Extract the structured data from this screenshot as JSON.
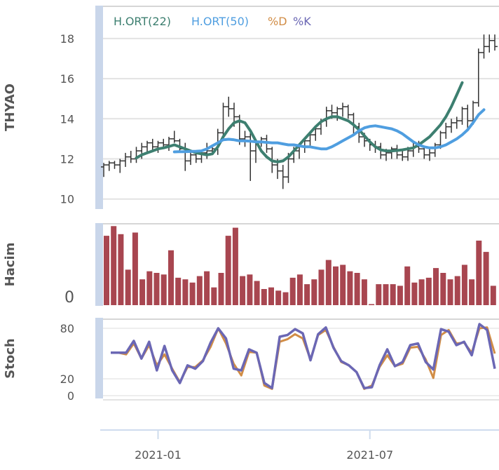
{
  "chart_data": [
    {
      "type": "ohlc",
      "ylabel": "THYAO",
      "ylim": [
        9.5,
        19.5
      ],
      "yticks": [
        10,
        12,
        14,
        16,
        18
      ],
      "legend": [
        {
          "name": "H.ORT(22)",
          "color": "#3d7f70"
        },
        {
          "name": "H.ORT(50)",
          "color": "#4f9ee0"
        },
        {
          "name": "%D",
          "color": "#d18d46"
        },
        {
          "name": "%K",
          "color": "#6b67b4"
        }
      ],
      "ohlc": [
        [
          11.6,
          11.8,
          11.1,
          11.7
        ],
        [
          11.7,
          11.9,
          11.4,
          11.8
        ],
        [
          11.8,
          11.9,
          11.5,
          11.7
        ],
        [
          11.7,
          12.0,
          11.3,
          11.9
        ],
        [
          11.9,
          12.3,
          11.6,
          12.1
        ],
        [
          12.1,
          12.4,
          11.8,
          12.0
        ],
        [
          12.0,
          12.6,
          11.8,
          12.4
        ],
        [
          12.4,
          12.8,
          12.0,
          12.6
        ],
        [
          12.6,
          12.9,
          12.3,
          12.8
        ],
        [
          12.8,
          13.0,
          12.4,
          12.6
        ],
        [
          12.6,
          12.9,
          12.3,
          12.8
        ],
        [
          12.8,
          13.0,
          12.5,
          12.7
        ],
        [
          12.7,
          13.1,
          12.4,
          13.0
        ],
        [
          13.0,
          13.4,
          12.8,
          12.9
        ],
        [
          12.9,
          13.0,
          12.3,
          12.5
        ],
        [
          12.5,
          12.8,
          11.4,
          11.9
        ],
        [
          11.9,
          12.4,
          11.7,
          12.2
        ],
        [
          12.2,
          12.4,
          11.8,
          12.0
        ],
        [
          12.0,
          12.4,
          11.8,
          12.3
        ],
        [
          12.3,
          12.8,
          12.0,
          12.4
        ],
        [
          12.4,
          12.6,
          12.2,
          12.5
        ],
        [
          12.5,
          13.5,
          12.2,
          13.3
        ],
        [
          13.3,
          14.8,
          13.0,
          14.6
        ],
        [
          14.6,
          15.1,
          14.1,
          14.5
        ],
        [
          14.5,
          14.8,
          13.6,
          14.1
        ],
        [
          14.1,
          14.2,
          12.7,
          13.0
        ],
        [
          13.0,
          13.4,
          12.6,
          13.1
        ],
        [
          13.1,
          13.3,
          10.9,
          12.4
        ],
        [
          12.4,
          12.9,
          11.8,
          12.8
        ],
        [
          12.8,
          13.1,
          12.6,
          13.0
        ],
        [
          13.0,
          13.2,
          12.3,
          12.5
        ],
        [
          12.5,
          12.6,
          11.3,
          11.7
        ],
        [
          11.7,
          12.0,
          11.0,
          11.4
        ],
        [
          11.4,
          11.7,
          10.5,
          11.1
        ],
        [
          11.1,
          12.3,
          10.8,
          12.0
        ],
        [
          12.0,
          12.6,
          11.8,
          12.4
        ],
        [
          12.4,
          12.7,
          12.0,
          12.6
        ],
        [
          12.6,
          13.0,
          12.3,
          12.9
        ],
        [
          12.9,
          13.3,
          12.6,
          13.2
        ],
        [
          13.2,
          13.6,
          12.9,
          13.5
        ],
        [
          13.5,
          14.0,
          13.2,
          13.9
        ],
        [
          13.9,
          14.6,
          13.6,
          14.4
        ],
        [
          14.4,
          14.7,
          14.0,
          14.3
        ],
        [
          14.3,
          14.6,
          13.9,
          14.5
        ],
        [
          14.5,
          14.8,
          14.1,
          14.6
        ],
        [
          14.6,
          14.7,
          14.0,
          14.2
        ],
        [
          14.2,
          14.3,
          13.2,
          13.6
        ],
        [
          13.6,
          13.8,
          12.8,
          13.1
        ],
        [
          13.1,
          13.3,
          12.6,
          12.9
        ],
        [
          12.9,
          13.0,
          12.4,
          12.7
        ],
        [
          12.7,
          12.9,
          12.3,
          12.6
        ],
        [
          12.6,
          12.8,
          12.0,
          12.2
        ],
        [
          12.2,
          12.5,
          11.9,
          12.3
        ],
        [
          12.3,
          12.6,
          12.0,
          12.5
        ],
        [
          12.5,
          12.7,
          12.0,
          12.2
        ],
        [
          12.2,
          12.4,
          11.9,
          12.1
        ],
        [
          12.1,
          12.6,
          11.9,
          12.4
        ],
        [
          12.4,
          12.8,
          12.1,
          12.6
        ],
        [
          12.6,
          12.9,
          12.3,
          12.5
        ],
        [
          12.5,
          12.6,
          12.0,
          12.2
        ],
        [
          12.2,
          12.5,
          11.9,
          12.3
        ],
        [
          12.3,
          12.8,
          12.1,
          12.7
        ],
        [
          12.7,
          13.4,
          12.5,
          13.3
        ],
        [
          13.3,
          13.8,
          13.0,
          13.6
        ],
        [
          13.6,
          14.0,
          13.3,
          13.8
        ],
        [
          13.8,
          14.1,
          13.5,
          13.9
        ],
        [
          13.9,
          14.6,
          13.7,
          14.5
        ],
        [
          14.5,
          14.7,
          13.5,
          13.9
        ],
        [
          13.9,
          14.9,
          13.7,
          14.8
        ],
        [
          14.8,
          17.5,
          14.6,
          17.3
        ],
        [
          17.3,
          18.2,
          17.0,
          17.6
        ],
        [
          17.6,
          18.2,
          17.3,
          17.9
        ],
        [
          17.9,
          18.2,
          17.4,
          17.6
        ]
      ],
      "series": [
        {
          "name": "H.ORT(22)",
          "x_start": 6,
          "values": [
            12.05,
            12.2,
            12.3,
            12.4,
            12.5,
            12.55,
            12.62,
            12.7,
            12.6,
            12.5,
            12.4,
            12.3,
            12.25,
            12.2,
            12.25,
            12.6,
            13.1,
            13.5,
            13.8,
            13.9,
            13.8,
            13.4,
            12.9,
            12.4,
            12.1,
            11.9,
            11.85,
            11.9,
            12.1,
            12.4,
            12.7,
            13.0,
            13.3,
            13.6,
            13.85,
            14.0,
            14.1,
            14.1,
            14.0,
            13.9,
            13.7,
            13.45,
            13.15,
            12.85,
            12.6,
            12.45,
            12.4,
            12.4,
            12.42,
            12.45,
            12.5,
            12.55,
            12.7,
            12.9,
            13.1,
            13.4,
            13.7,
            14.1,
            14.6,
            15.2,
            15.8
          ]
        },
        {
          "name": "H.ORT(50)",
          "x_start": 13,
          "values": [
            12.35,
            12.36,
            12.36,
            12.37,
            12.38,
            12.4,
            12.5,
            12.65,
            12.8,
            12.95,
            12.98,
            12.95,
            12.9,
            12.9,
            12.88,
            12.85,
            12.85,
            12.82,
            12.8,
            12.8,
            12.75,
            12.7,
            12.7,
            12.65,
            12.6,
            12.6,
            12.55,
            12.5,
            12.5,
            12.6,
            12.75,
            12.9,
            13.05,
            13.2,
            13.4,
            13.55,
            13.62,
            13.65,
            13.6,
            13.55,
            13.5,
            13.4,
            13.25,
            13.05,
            12.85,
            12.7,
            12.6,
            12.55,
            12.55,
            12.6,
            12.7,
            12.85,
            13.0,
            13.2,
            13.45,
            13.8,
            14.2,
            14.45
          ]
        }
      ]
    },
    {
      "type": "bar",
      "ylabel": "Hacim",
      "ytick_labels": [
        "0"
      ],
      "ylim": [
        0,
        100
      ],
      "values": [
        86,
        98,
        88,
        44,
        90,
        32,
        42,
        40,
        38,
        68,
        34,
        32,
        28,
        36,
        42,
        22,
        40,
        86,
        96,
        36,
        38,
        30,
        20,
        22,
        18,
        16,
        34,
        38,
        26,
        32,
        44,
        56,
        48,
        50,
        42,
        40,
        32,
        0,
        26,
        26,
        26,
        24,
        48,
        28,
        32,
        34,
        46,
        40,
        32,
        36,
        50,
        32,
        80,
        66,
        24
      ]
    },
    {
      "type": "line",
      "ylabel": "Stoch",
      "yticks": [
        0,
        20,
        80
      ],
      "ylim": [
        -5,
        90
      ],
      "series": [
        {
          "name": "%D",
          "values": [
            51,
            51,
            49,
            62,
            44,
            60,
            36,
            49,
            32,
            16,
            34,
            34,
            42,
            58,
            80,
            62,
            38,
            24,
            52,
            51,
            12,
            8,
            64,
            67,
            73,
            68,
            43,
            72,
            78,
            58,
            40,
            36,
            28,
            8,
            12,
            34,
            48,
            35,
            38,
            57,
            58,
            43,
            21,
            72,
            78,
            62,
            63,
            51,
            80,
            81,
            50
          ]
        },
        {
          "name": "%K",
          "values": [
            51,
            51,
            51,
            65,
            44,
            64,
            30,
            59,
            30,
            15,
            36,
            32,
            41,
            63,
            80,
            68,
            32,
            30,
            55,
            51,
            15,
            9,
            70,
            72,
            79,
            74,
            42,
            73,
            81,
            57,
            41,
            36,
            28,
            9,
            10,
            36,
            55,
            35,
            40,
            60,
            62,
            40,
            31,
            79,
            76,
            60,
            64,
            48,
            85,
            78,
            32
          ]
        }
      ]
    }
  ],
  "x_axis": {
    "ticks": [
      {
        "label": "2021-01",
        "index": 10
      },
      {
        "label": "2021-07",
        "index": 49
      }
    ]
  }
}
